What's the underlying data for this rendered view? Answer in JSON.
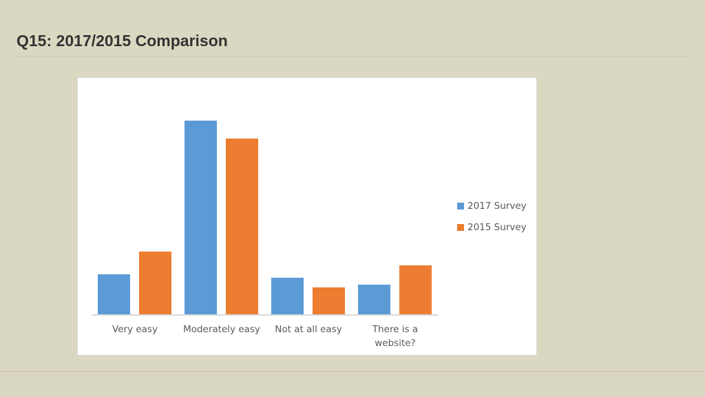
{
  "slide": {
    "title": "Q15: 2017/2015 Comparison"
  },
  "chart_data": {
    "type": "bar",
    "title": "",
    "xlabel": "",
    "ylabel": "",
    "categories": [
      "Very easy",
      "Moderately easy",
      "Not at all easy",
      "There is a\nwebsite?"
    ],
    "series": [
      {
        "name": "2017 Survey",
        "color": "#5b9bd5",
        "values": [
          58,
          281,
          53,
          43
        ]
      },
      {
        "name": "2015 Survey",
        "color": "#ed7d31",
        "values": [
          91,
          255,
          39,
          71
        ]
      }
    ],
    "value_units": "relative bar height (no y-axis shown)",
    "ylim": [
      0,
      343
    ],
    "grid": false,
    "legend_position": "right"
  }
}
